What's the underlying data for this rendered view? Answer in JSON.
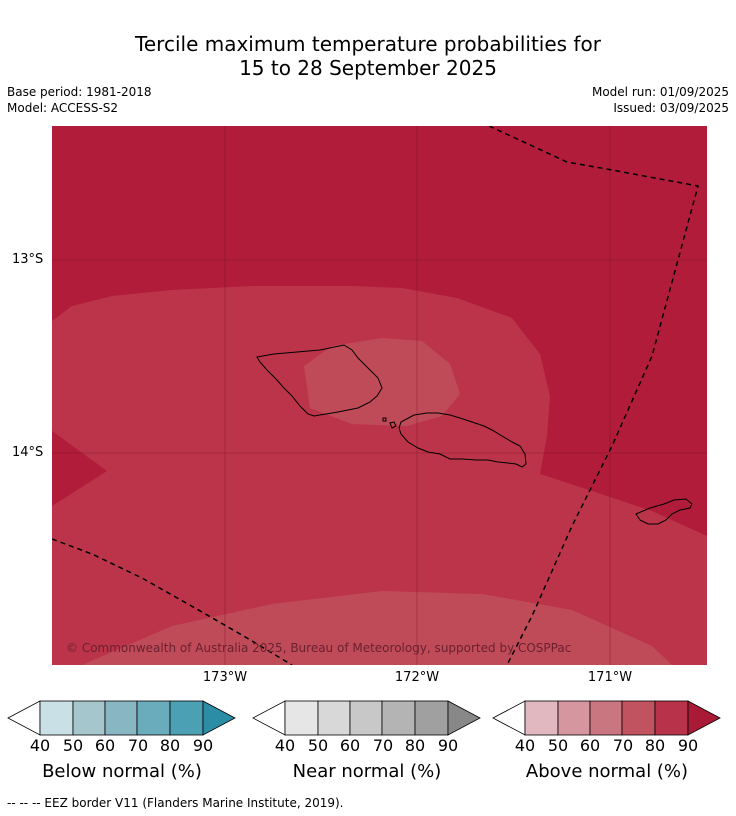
{
  "title_line1": "Tercile maximum temperature probabilities for",
  "title_line2": "15 to 28 September 2025",
  "meta": {
    "base_period": "Base period: 1981-2018",
    "model": "Model: ACCESS-S2",
    "model_run": "Model run: 01/09/2025",
    "issued": "Issued: 03/09/2025"
  },
  "map": {
    "lat_labels": [
      "13°S",
      "14°S"
    ],
    "lon_labels": [
      "173°W",
      "172°W",
      "171°W"
    ],
    "copyright": "© Commonwealth of Australia 2025, Bureau of Meteorology, supported by COSPPac"
  },
  "colorbars": [
    {
      "label": "Below normal (%)",
      "ticks": [
        "40",
        "50",
        "60",
        "70",
        "80",
        "90"
      ],
      "colors": [
        "#ffffff",
        "#c9e0e6",
        "#a5c6cc",
        "#88b6c2",
        "#6aacbc",
        "#4ca0b4",
        "#2c8da6"
      ]
    },
    {
      "label": "Near normal (%)",
      "ticks": [
        "40",
        "50",
        "60",
        "70",
        "80",
        "90"
      ],
      "colors": [
        "#ffffff",
        "#e6e6e6",
        "#d8d8d8",
        "#c8c8c8",
        "#b4b4b4",
        "#a0a0a0",
        "#888888"
      ]
    },
    {
      "label": "Above normal (%)",
      "ticks": [
        "40",
        "50",
        "60",
        "70",
        "80",
        "90"
      ],
      "colors": [
        "#ffffff",
        "#e1b8bf",
        "#d5969f",
        "#ca7681",
        "#c1525f",
        "#b8324a",
        "#a81a36"
      ]
    }
  ],
  "footnote": "--  --  -- EEZ border V11 (Flanders Marine Institute, 2019).",
  "colors": {
    "above_90": "#b01c39",
    "above_80": "#bc3449",
    "above_70": "#c04b58"
  }
}
